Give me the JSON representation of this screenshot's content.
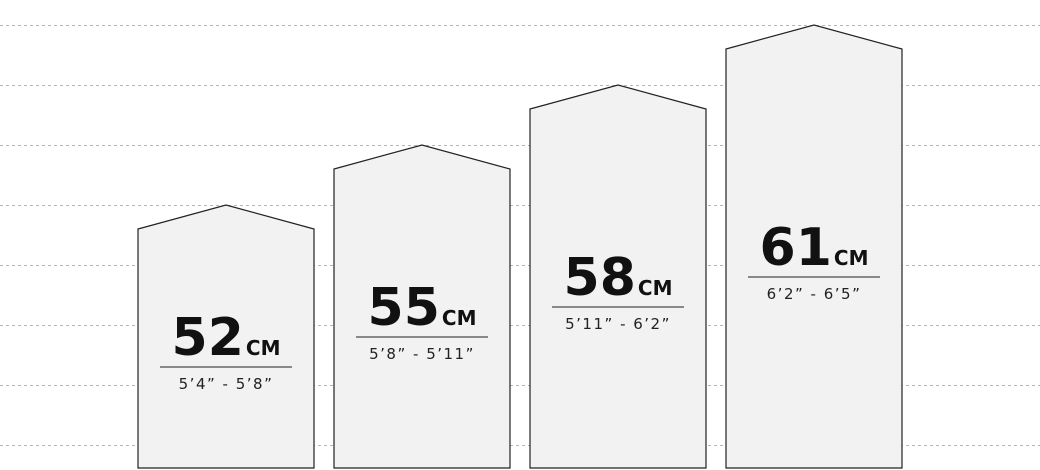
{
  "colors": {
    "shape_fill": "#f2f2f2",
    "shape_stroke": "#222222",
    "grid": "#b5b5b5",
    "divider": "#666666"
  },
  "sizes": [
    {
      "size": "52",
      "unit": "CM",
      "range": "5’4” - 5’8”"
    },
    {
      "size": "55",
      "unit": "CM",
      "range": "5’8” - 5’11”"
    },
    {
      "size": "58",
      "unit": "CM",
      "range": "5’11” - 6’2”"
    },
    {
      "size": "61",
      "unit": "CM",
      "range": "6’2” - 6’5”"
    }
  ]
}
